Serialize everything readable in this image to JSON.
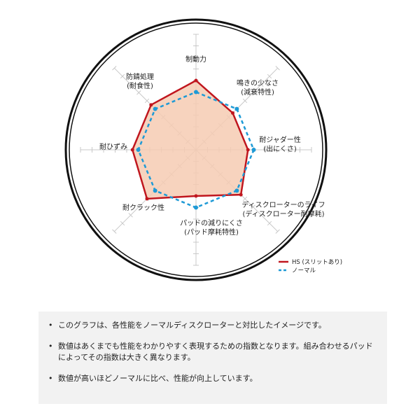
{
  "chart_data": {
    "type": "radar",
    "axes": [
      {
        "lines": [
          "制動力"
        ]
      },
      {
        "lines": [
          "鳴きの少なさ",
          "(減衰特性)"
        ]
      },
      {
        "lines": [
          "耐ジャダー性",
          "(出にくさ)"
        ]
      },
      {
        "lines": [
          "ディスクローターのライフ",
          "(ディスクローター耐摩耗)"
        ]
      },
      {
        "lines": [
          "パッドの減りにくさ",
          "(パッド摩耗特性)"
        ]
      },
      {
        "lines": [
          "耐クラック性"
        ]
      },
      {
        "lines": [
          "耐ひずみ"
        ]
      },
      {
        "lines": [
          "防錆処理",
          "(耐食性)"
        ]
      }
    ],
    "range": [
      0,
      10
    ],
    "series": [
      {
        "name": "HS (スリットあり)",
        "values": [
          6,
          4.5,
          4.5,
          5.5,
          4,
          6,
          5.5,
          5.5
        ],
        "color": "#c0161e",
        "fill": "#f6cbb3",
        "style": "solid"
      },
      {
        "name": "ノーマル",
        "values": [
          5,
          5,
          5,
          5,
          5,
          5,
          5,
          5
        ],
        "color": "#1e9ad6",
        "style": "dashed"
      }
    ],
    "legend": "bottom-right"
  },
  "notes": [
    "このグラフは、各性能をノーマルディスクローターと対比したイメージです。",
    "数値はあくまでも性能をわかりやすく表現するための指数となります。組み合わせるパッドによってその指数は大きく異なります。",
    "数値が高いほどノーマルに比べ、性能が向上しています。"
  ]
}
